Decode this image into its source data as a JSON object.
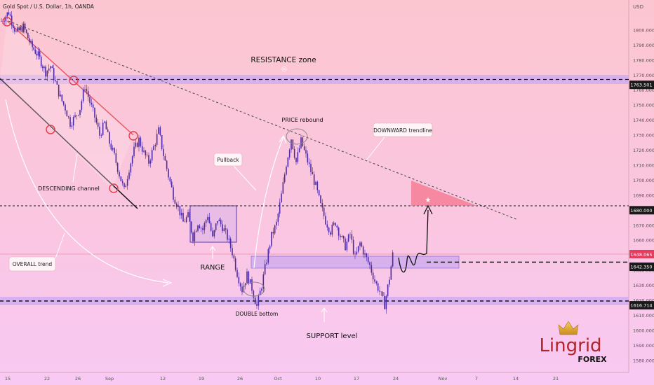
{
  "chart_data": {
    "type": "candlestick",
    "header": "Gold Spot / U.S. Dollar, 1h, OANDA",
    "currency": "USD",
    "ylim": [
      1572,
      1820
    ],
    "y_ticks": [
      1580,
      1590,
      1600,
      1610,
      1620,
      1630,
      1640,
      1650,
      1660,
      1670,
      1680,
      1690,
      1700,
      1710,
      1720,
      1730,
      1740,
      1750,
      1760,
      1770,
      1780,
      1790,
      1800
    ],
    "y_tick_labels": [
      "1580.000",
      "1590.000",
      "1600.000",
      "1610.000",
      "1620.000",
      "1630.000",
      "1640.000",
      "1650.000",
      "1660.000",
      "1670.000",
      "1680.000",
      "1690.000",
      "1700.000",
      "1710.000",
      "1720.000",
      "1730.000",
      "1740.000",
      "1750.000",
      "1760.000",
      "1770.000",
      "1780.000",
      "1790.000",
      "1800.000"
    ],
    "x_ticks": [
      "15",
      "22",
      "26",
      "Sep",
      "12",
      "19",
      "26",
      "Oct",
      "10",
      "17",
      "24",
      "Nov",
      "7",
      "14",
      "21"
    ],
    "price_path": [
      [
        0,
        1806
      ],
      [
        3,
        1812
      ],
      [
        6,
        1798
      ],
      [
        9,
        1802
      ],
      [
        12,
        1790
      ],
      [
        15,
        1783
      ],
      [
        18,
        1772
      ],
      [
        20,
        1776
      ],
      [
        22,
        1765
      ],
      [
        24,
        1755
      ],
      [
        26,
        1748
      ],
      [
        28,
        1738
      ],
      [
        30,
        1742
      ],
      [
        32,
        1748
      ],
      [
        34,
        1763
      ],
      [
        36,
        1752
      ],
      [
        38,
        1742
      ],
      [
        40,
        1730
      ],
      [
        42,
        1738
      ],
      [
        44,
        1725
      ],
      [
        46,
        1716
      ],
      [
        48,
        1704
      ],
      [
        50,
        1693
      ],
      [
        52,
        1708
      ],
      [
        54,
        1720
      ],
      [
        56,
        1727
      ],
      [
        58,
        1718
      ],
      [
        60,
        1712
      ],
      [
        62,
        1722
      ],
      [
        64,
        1733
      ],
      [
        66,
        1717
      ],
      [
        68,
        1703
      ],
      [
        70,
        1690
      ],
      [
        72,
        1682
      ],
      [
        74,
        1672
      ],
      [
        76,
        1676
      ],
      [
        78,
        1662
      ],
      [
        80,
        1672
      ],
      [
        82,
        1667
      ],
      [
        84,
        1677
      ],
      [
        86,
        1661
      ],
      [
        88,
        1674
      ],
      [
        90,
        1669
      ],
      [
        92,
        1662
      ],
      [
        94,
        1652
      ],
      [
        96,
        1638
      ],
      [
        98,
        1627
      ],
      [
        100,
        1637
      ],
      [
        102,
        1628
      ],
      [
        104,
        1616
      ],
      [
        106,
        1630
      ],
      [
        108,
        1647
      ],
      [
        110,
        1663
      ],
      [
        112,
        1671
      ],
      [
        114,
        1690
      ],
      [
        116,
        1711
      ],
      [
        118,
        1728
      ],
      [
        120,
        1712
      ],
      [
        122,
        1726
      ],
      [
        124,
        1716
      ],
      [
        126,
        1706
      ],
      [
        128,
        1696
      ],
      [
        130,
        1683
      ],
      [
        132,
        1673
      ],
      [
        134,
        1666
      ],
      [
        136,
        1672
      ],
      [
        138,
        1663
      ],
      [
        140,
        1656
      ],
      [
        142,
        1664
      ],
      [
        144,
        1648
      ],
      [
        146,
        1658
      ],
      [
        148,
        1650
      ],
      [
        150,
        1643
      ],
      [
        152,
        1633
      ],
      [
        154,
        1626
      ],
      [
        156,
        1617
      ],
      [
        158,
        1635
      ],
      [
        160,
        1658
      ]
    ],
    "current_price_label": "1648.065",
    "levels": [
      {
        "name": "resistance",
        "value": 1763.501,
        "label": "1763.501"
      },
      {
        "name": "target",
        "value": 1680.0,
        "label": "1680.000"
      },
      {
        "name": "intermediate",
        "value": 1642.35,
        "label": "1642.350"
      },
      {
        "name": "support",
        "value": 1616.714,
        "label": "1616.714"
      }
    ],
    "annotations": {
      "resistance_zone": "RESISTANCE zone",
      "price_rebound": "PRICE rebound",
      "downward_trendline": "DOWNWARD trendline",
      "pullback": "Pullback",
      "descending_channel": "DESCENDING channel",
      "overall_trend": "OVERALL trend",
      "range": "RANGE",
      "double_bottom": "DOUBLE bottom",
      "support_level": "SUPPORT level"
    }
  },
  "brand": {
    "name": "Lingrid",
    "sub": "FOREX",
    "accent": "#b0252c",
    "crown_color": "#e8b33a"
  },
  "colors": {
    "background_top": "#fbc7d2",
    "background_bottom": "#f9c8f2",
    "candle": "#4e2aa6",
    "channel_red": "#e43c47",
    "channel_black": "#111111",
    "zone_fill": "#c9a8f0"
  }
}
